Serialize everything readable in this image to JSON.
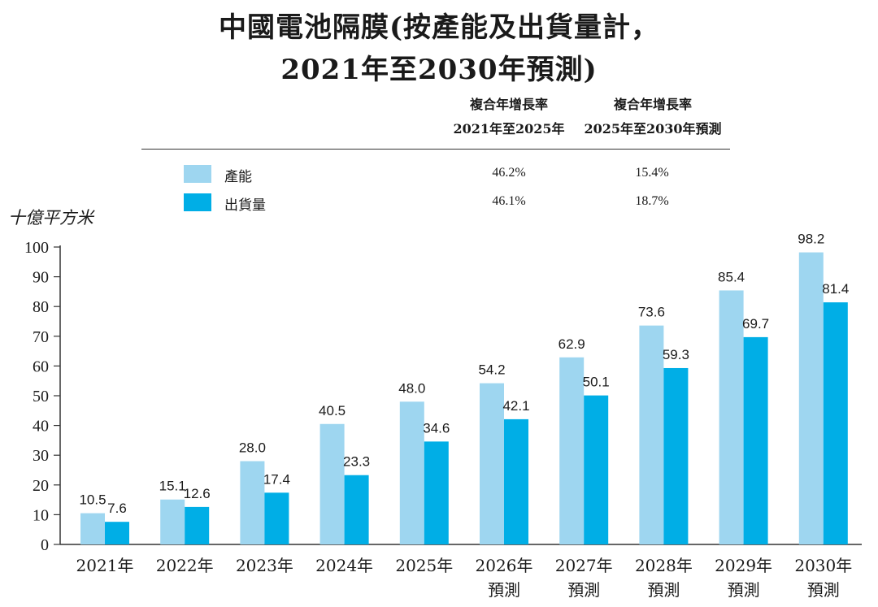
{
  "title_line1": "中國電池隔膜(按產能及出貨量計，",
  "title_line2": "2021年至2030年預測)",
  "cagr": {
    "col1_line1": "複合年增長率",
    "col1_line2": "2021年至2025年",
    "col2_line1": "複合年增長率",
    "col2_line2": "2025年至2030年預測"
  },
  "legend": [
    {
      "label": "產能",
      "color": "#9ed6f0",
      "cagr1": "46.2%",
      "cagr2": "15.4%"
    },
    {
      "label": "出貨量",
      "color": "#00aee6",
      "cagr1": "46.1%",
      "cagr2": "18.7%"
    }
  ],
  "unit_label": "十億平方米",
  "chart_data": {
    "type": "bar",
    "categories": [
      "2021年",
      "2022年",
      "2023年",
      "2024年",
      "2025年",
      "2026年",
      "2027年",
      "2028年",
      "2029年",
      "2030年"
    ],
    "category_sublabels": [
      "",
      "",
      "",
      "",
      "",
      "預測",
      "預測",
      "預測",
      "預測",
      "預測"
    ],
    "series": [
      {
        "name": "產能",
        "values": [
          10.5,
          15.1,
          28.0,
          40.5,
          48.0,
          54.2,
          62.9,
          73.6,
          85.4,
          98.2
        ],
        "color": "#9ed6f0"
      },
      {
        "name": "出貨量",
        "values": [
          7.6,
          12.6,
          17.4,
          23.3,
          34.6,
          42.1,
          50.1,
          59.3,
          69.7,
          81.4
        ],
        "color": "#00aee6"
      }
    ],
    "yticks": [
      0,
      10,
      20,
      30,
      40,
      50,
      60,
      70,
      80,
      90,
      100
    ],
    "ylim": [
      0,
      100
    ],
    "ylabel": "十億平方米",
    "grid": false
  }
}
